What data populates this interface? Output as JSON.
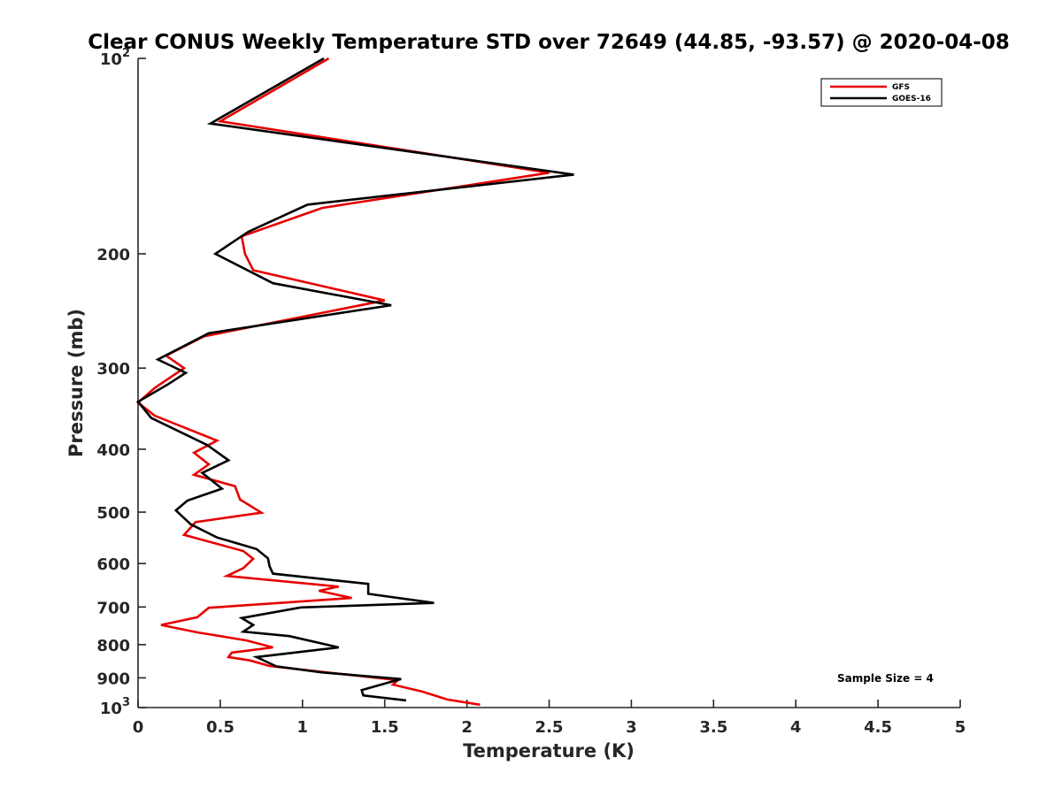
{
  "chart_data": {
    "type": "line",
    "title": "Clear CONUS Weekly Temperature STD over 72649 (44.85, -93.57) @ 2020-04-08",
    "xlabel": "Temperature (K)",
    "ylabel": "Pressure (mb)",
    "xlim": [
      0,
      5
    ],
    "ylim": [
      100,
      1000
    ],
    "y_scale": "log",
    "y_reversed": true,
    "x_ticks": [
      "0",
      "0.5",
      "1",
      "1.5",
      "2",
      "2.5",
      "3",
      "3.5",
      "4",
      "4.5",
      "5"
    ],
    "y_ticks": [
      {
        "value": 100,
        "base": "10",
        "exp": "2"
      },
      {
        "value": 200,
        "label": "200"
      },
      {
        "value": 300,
        "label": "300"
      },
      {
        "value": 400,
        "label": "400"
      },
      {
        "value": 500,
        "label": "500"
      },
      {
        "value": 600,
        "label": "600"
      },
      {
        "value": 700,
        "label": "700"
      },
      {
        "value": 800,
        "label": "800"
      },
      {
        "value": 900,
        "label": "900"
      },
      {
        "value": 1000,
        "base": "10",
        "exp": "3"
      }
    ],
    "legend_position": "top-right",
    "grid": false,
    "annotation": "Sample Size = 4",
    "series": [
      {
        "name": "GFS",
        "color": "#e60000",
        "points": [
          [
            1.16,
            100
          ],
          [
            0.5,
            125
          ],
          [
            2.5,
            150
          ],
          [
            1.12,
            170
          ],
          [
            0.63,
            188
          ],
          [
            0.65,
            200
          ],
          [
            0.7,
            212
          ],
          [
            1.5,
            236
          ],
          [
            0.4,
            268
          ],
          [
            0.17,
            287
          ],
          [
            0.28,
            300
          ],
          [
            0.1,
            322
          ],
          [
            0.0,
            339
          ],
          [
            0.1,
            355
          ],
          [
            0.48,
            388
          ],
          [
            0.34,
            405
          ],
          [
            0.43,
            422
          ],
          [
            0.34,
            438
          ],
          [
            0.59,
            456
          ],
          [
            0.62,
            478
          ],
          [
            0.75,
            501
          ],
          [
            0.35,
            518
          ],
          [
            0.28,
            542
          ],
          [
            0.64,
            574
          ],
          [
            0.7,
            590
          ],
          [
            0.64,
            610
          ],
          [
            0.54,
            627
          ],
          [
            1.22,
            651
          ],
          [
            1.1,
            661
          ],
          [
            1.3,
            678
          ],
          [
            0.43,
            702
          ],
          [
            0.36,
            726
          ],
          [
            0.14,
            746
          ],
          [
            0.36,
            766
          ],
          [
            0.66,
            788
          ],
          [
            0.82,
            808
          ],
          [
            0.57,
            823
          ],
          [
            0.55,
            836
          ],
          [
            0.68,
            846
          ],
          [
            0.8,
            863
          ],
          [
            1.1,
            880
          ],
          [
            1.58,
            907
          ],
          [
            1.55,
            922
          ],
          [
            1.73,
            945
          ],
          [
            1.88,
            972
          ],
          [
            2.08,
            990
          ]
        ]
      },
      {
        "name": "GOES-16",
        "color": "#000000",
        "points": [
          [
            1.13,
            100
          ],
          [
            0.44,
            126
          ],
          [
            2.65,
            151
          ],
          [
            1.03,
            168
          ],
          [
            0.67,
            185
          ],
          [
            0.47,
            200
          ],
          [
            0.82,
            222
          ],
          [
            1.54,
            240
          ],
          [
            0.43,
            265
          ],
          [
            0.12,
            291
          ],
          [
            0.29,
            305
          ],
          [
            0.18,
            318
          ],
          [
            0.0,
            338
          ],
          [
            0.08,
            358
          ],
          [
            0.42,
            394
          ],
          [
            0.55,
            416
          ],
          [
            0.39,
            435
          ],
          [
            0.51,
            460
          ],
          [
            0.3,
            480
          ],
          [
            0.23,
            497
          ],
          [
            0.32,
            522
          ],
          [
            0.48,
            547
          ],
          [
            0.72,
            570
          ],
          [
            0.79,
            589
          ],
          [
            0.8,
            606
          ],
          [
            0.82,
            622
          ],
          [
            1.4,
            645
          ],
          [
            1.4,
            668
          ],
          [
            1.8,
            690
          ],
          [
            0.99,
            701
          ],
          [
            0.63,
            728
          ],
          [
            0.7,
            746
          ],
          [
            0.64,
            764
          ],
          [
            0.92,
            776
          ],
          [
            1.22,
            808
          ],
          [
            0.72,
            836
          ],
          [
            0.84,
            864
          ],
          [
            1.12,
            883
          ],
          [
            1.6,
            904
          ],
          [
            1.47,
            923
          ],
          [
            1.36,
            940
          ],
          [
            1.37,
            958
          ],
          [
            1.63,
            975
          ]
        ]
      }
    ]
  }
}
